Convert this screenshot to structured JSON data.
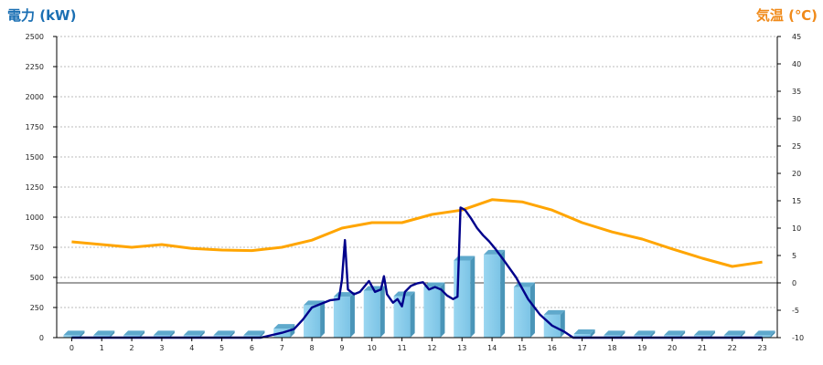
{
  "chart_data": {
    "type": "bar+line",
    "left_axis_title": "電力 (kW)",
    "right_axis_title": "気温 (℃)",
    "left_ylim": [
      0,
      2500
    ],
    "left_ticks": [
      0,
      250,
      500,
      750,
      1000,
      1250,
      1500,
      1750,
      2000,
      2250,
      2500
    ],
    "right_ylim": [
      -10,
      45
    ],
    "right_ticks": [
      -10,
      -5,
      0,
      5,
      10,
      15,
      20,
      25,
      30,
      35,
      40,
      45
    ],
    "categories": [
      "0",
      "1",
      "2",
      "3",
      "4",
      "5",
      "6",
      "7",
      "8",
      "9",
      "10",
      "11",
      "12",
      "13",
      "14",
      "15",
      "16",
      "17",
      "18",
      "19",
      "20",
      "21",
      "22",
      "23"
    ],
    "grid": true,
    "bar_series": {
      "color": "#87ceeb",
      "values": [
        20,
        20,
        20,
        20,
        20,
        20,
        20,
        75,
        270,
        340,
        390,
        345,
        420,
        640,
        690,
        420,
        190,
        30,
        20,
        20,
        20,
        20,
        20,
        20
      ]
    },
    "power_line": {
      "color": "#00008b",
      "x": [
        0,
        6.3,
        7.0,
        7.4,
        7.7,
        8.0,
        8.3,
        8.6,
        8.9,
        9.0,
        9.1,
        9.2,
        9.4,
        9.6,
        9.9,
        10.1,
        10.3,
        10.4,
        10.5,
        10.7,
        10.85,
        11.0,
        11.1,
        11.3,
        11.5,
        11.7,
        11.9,
        12.1,
        12.3,
        12.5,
        12.7,
        12.85,
        12.95,
        13.1,
        13.3,
        13.5,
        13.7,
        13.9,
        14.1,
        14.4,
        14.8,
        15.2,
        15.6,
        16.0,
        16.4,
        16.7,
        23.0
      ],
      "y": [
        0,
        0,
        40,
        70,
        150,
        250,
        280,
        310,
        320,
        480,
        810,
        400,
        360,
        380,
        470,
        380,
        400,
        510,
        360,
        290,
        320,
        260,
        380,
        430,
        450,
        460,
        400,
        420,
        400,
        350,
        320,
        340,
        1080,
        1060,
        990,
        910,
        850,
        800,
        740,
        640,
        500,
        320,
        190,
        100,
        50,
        0,
        0
      ]
    },
    "temperature_line": {
      "color": "#ffa500",
      "x": [
        0,
        1,
        2,
        3,
        4,
        5,
        6,
        7,
        8,
        9,
        10,
        11,
        12,
        13,
        14,
        15,
        16,
        17,
        18,
        19,
        20,
        21,
        22,
        23
      ],
      "y": [
        7.5,
        7.0,
        6.5,
        7.0,
        6.3,
        6.0,
        5.9,
        6.5,
        7.8,
        10.0,
        11.0,
        11.0,
        12.5,
        13.3,
        15.2,
        14.8,
        13.3,
        11.0,
        9.3,
        8.0,
        6.2,
        4.5,
        3.0,
        3.8
      ]
    }
  }
}
